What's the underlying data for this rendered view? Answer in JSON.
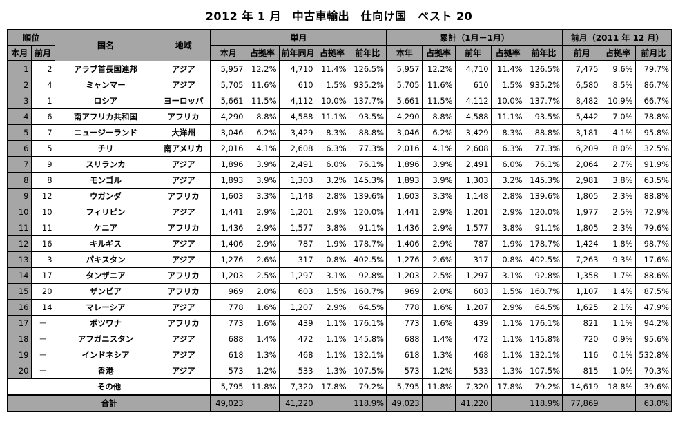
{
  "title": "2012 年 1 月　中古車輸出　仕向け国　ベスト 20",
  "headers": {
    "rank": "順位",
    "country": "国名",
    "region": "地域",
    "single_month": "単月",
    "cumulative": "累計（1月－1月）",
    "prev_month": "前月（2011 年 12 月）",
    "this_month": "本月",
    "last_month": "前月",
    "sub_single": [
      "本月",
      "占拠率",
      "前年同月",
      "占拠率",
      "前年比"
    ],
    "sub_cumulative": [
      "本年",
      "占拠率",
      "前年",
      "占拠率",
      "前年比"
    ],
    "sub_prev": [
      "前月",
      "占拠率",
      "前月比"
    ]
  },
  "rows": [
    {
      "rank": "1",
      "prev": "2",
      "country": "アラブ首長国連邦",
      "region": "アジア",
      "m": "5,957",
      "m_s": "12.2%",
      "py": "4,710",
      "py_s": "11.4%",
      "yoy": "126.5%",
      "c": "5,957",
      "c_s": "12.2%",
      "cp": "4,710",
      "cp_s": "11.4%",
      "c_yoy": "126.5%",
      "pm": "7,475",
      "pm_s": "9.6%",
      "mom": "79.7%"
    },
    {
      "rank": "2",
      "prev": "4",
      "country": "ミャンマー",
      "region": "アジア",
      "m": "5,705",
      "m_s": "11.6%",
      "py": "610",
      "py_s": "1.5%",
      "yoy": "935.2%",
      "c": "5,705",
      "c_s": "11.6%",
      "cp": "610",
      "cp_s": "1.5%",
      "c_yoy": "935.2%",
      "pm": "6,580",
      "pm_s": "8.5%",
      "mom": "86.7%"
    },
    {
      "rank": "3",
      "prev": "1",
      "country": "ロシア",
      "region": "ヨーロッパ",
      "m": "5,661",
      "m_s": "11.5%",
      "py": "4,112",
      "py_s": "10.0%",
      "yoy": "137.7%",
      "c": "5,661",
      "c_s": "11.5%",
      "cp": "4,112",
      "cp_s": "10.0%",
      "c_yoy": "137.7%",
      "pm": "8,482",
      "pm_s": "10.9%",
      "mom": "66.7%"
    },
    {
      "rank": "4",
      "prev": "6",
      "country": "南アフリカ共和国",
      "region": "アフリカ",
      "m": "4,290",
      "m_s": "8.8%",
      "py": "4,588",
      "py_s": "11.1%",
      "yoy": "93.5%",
      "c": "4,290",
      "c_s": "8.8%",
      "cp": "4,588",
      "cp_s": "11.1%",
      "c_yoy": "93.5%",
      "pm": "5,442",
      "pm_s": "7.0%",
      "mom": "78.8%"
    },
    {
      "rank": "5",
      "prev": "7",
      "country": "ニュージーランド",
      "region": "大洋州",
      "m": "3,046",
      "m_s": "6.2%",
      "py": "3,429",
      "py_s": "8.3%",
      "yoy": "88.8%",
      "c": "3,046",
      "c_s": "6.2%",
      "cp": "3,429",
      "cp_s": "8.3%",
      "c_yoy": "88.8%",
      "pm": "3,181",
      "pm_s": "4.1%",
      "mom": "95.8%"
    },
    {
      "rank": "6",
      "prev": "5",
      "country": "チリ",
      "region": "南アメリカ",
      "m": "2,016",
      "m_s": "4.1%",
      "py": "2,608",
      "py_s": "6.3%",
      "yoy": "77.3%",
      "c": "2,016",
      "c_s": "4.1%",
      "cp": "2,608",
      "cp_s": "6.3%",
      "c_yoy": "77.3%",
      "pm": "6,209",
      "pm_s": "8.0%",
      "mom": "32.5%"
    },
    {
      "rank": "7",
      "prev": "9",
      "country": "スリランカ",
      "region": "アジア",
      "m": "1,896",
      "m_s": "3.9%",
      "py": "2,491",
      "py_s": "6.0%",
      "yoy": "76.1%",
      "c": "1,896",
      "c_s": "3.9%",
      "cp": "2,491",
      "cp_s": "6.0%",
      "c_yoy": "76.1%",
      "pm": "2,064",
      "pm_s": "2.7%",
      "mom": "91.9%"
    },
    {
      "rank": "8",
      "prev": "8",
      "country": "モンゴル",
      "region": "アジア",
      "m": "1,893",
      "m_s": "3.9%",
      "py": "1,303",
      "py_s": "3.2%",
      "yoy": "145.3%",
      "c": "1,893",
      "c_s": "3.9%",
      "cp": "1,303",
      "cp_s": "3.2%",
      "c_yoy": "145.3%",
      "pm": "2,981",
      "pm_s": "3.8%",
      "mom": "63.5%"
    },
    {
      "rank": "9",
      "prev": "12",
      "country": "ウガンダ",
      "region": "アフリカ",
      "m": "1,603",
      "m_s": "3.3%",
      "py": "1,148",
      "py_s": "2.8%",
      "yoy": "139.6%",
      "c": "1,603",
      "c_s": "3.3%",
      "cp": "1,148",
      "cp_s": "2.8%",
      "c_yoy": "139.6%",
      "pm": "1,805",
      "pm_s": "2.3%",
      "mom": "88.8%"
    },
    {
      "rank": "10",
      "prev": "10",
      "country": "フィリピン",
      "region": "アジア",
      "m": "1,441",
      "m_s": "2.9%",
      "py": "1,201",
      "py_s": "2.9%",
      "yoy": "120.0%",
      "c": "1,441",
      "c_s": "2.9%",
      "cp": "1,201",
      "cp_s": "2.9%",
      "c_yoy": "120.0%",
      "pm": "1,977",
      "pm_s": "2.5%",
      "mom": "72.9%"
    },
    {
      "rank": "11",
      "prev": "11",
      "country": "ケニア",
      "region": "アフリカ",
      "m": "1,436",
      "m_s": "2.9%",
      "py": "1,577",
      "py_s": "3.8%",
      "yoy": "91.1%",
      "c": "1,436",
      "c_s": "2.9%",
      "cp": "1,577",
      "cp_s": "3.8%",
      "c_yoy": "91.1%",
      "pm": "1,805",
      "pm_s": "2.3%",
      "mom": "79.6%"
    },
    {
      "rank": "12",
      "prev": "16",
      "country": "キルギス",
      "region": "アジア",
      "m": "1,406",
      "m_s": "2.9%",
      "py": "787",
      "py_s": "1.9%",
      "yoy": "178.7%",
      "c": "1,406",
      "c_s": "2.9%",
      "cp": "787",
      "cp_s": "1.9%",
      "c_yoy": "178.7%",
      "pm": "1,424",
      "pm_s": "1.8%",
      "mom": "98.7%"
    },
    {
      "rank": "13",
      "prev": "3",
      "country": "パキスタン",
      "region": "アジア",
      "m": "1,276",
      "m_s": "2.6%",
      "py": "317",
      "py_s": "0.8%",
      "yoy": "402.5%",
      "c": "1,276",
      "c_s": "2.6%",
      "cp": "317",
      "cp_s": "0.8%",
      "c_yoy": "402.5%",
      "pm": "7,263",
      "pm_s": "9.3%",
      "mom": "17.6%"
    },
    {
      "rank": "14",
      "prev": "17",
      "country": "タンザニア",
      "region": "アフリカ",
      "m": "1,203",
      "m_s": "2.5%",
      "py": "1,297",
      "py_s": "3.1%",
      "yoy": "92.8%",
      "c": "1,203",
      "c_s": "2.5%",
      "cp": "1,297",
      "cp_s": "3.1%",
      "c_yoy": "92.8%",
      "pm": "1,358",
      "pm_s": "1.7%",
      "mom": "88.6%"
    },
    {
      "rank": "15",
      "prev": "20",
      "country": "ザンビア",
      "region": "アフリカ",
      "m": "969",
      "m_s": "2.0%",
      "py": "603",
      "py_s": "1.5%",
      "yoy": "160.7%",
      "c": "969",
      "c_s": "2.0%",
      "cp": "603",
      "cp_s": "1.5%",
      "c_yoy": "160.7%",
      "pm": "1,107",
      "pm_s": "1.4%",
      "mom": "87.5%"
    },
    {
      "rank": "16",
      "prev": "14",
      "country": "マレーシア",
      "region": "アジア",
      "m": "778",
      "m_s": "1.6%",
      "py": "1,207",
      "py_s": "2.9%",
      "yoy": "64.5%",
      "c": "778",
      "c_s": "1.6%",
      "cp": "1,207",
      "cp_s": "2.9%",
      "c_yoy": "64.5%",
      "pm": "1,625",
      "pm_s": "2.1%",
      "mom": "47.9%"
    },
    {
      "rank": "17",
      "prev": "－",
      "country": "ボツワナ",
      "region": "アフリカ",
      "m": "773",
      "m_s": "1.6%",
      "py": "439",
      "py_s": "1.1%",
      "yoy": "176.1%",
      "c": "773",
      "c_s": "1.6%",
      "cp": "439",
      "cp_s": "1.1%",
      "c_yoy": "176.1%",
      "pm": "821",
      "pm_s": "1.1%",
      "mom": "94.2%"
    },
    {
      "rank": "18",
      "prev": "－",
      "country": "アフガニスタン",
      "region": "アジア",
      "m": "688",
      "m_s": "1.4%",
      "py": "472",
      "py_s": "1.1%",
      "yoy": "145.8%",
      "c": "688",
      "c_s": "1.4%",
      "cp": "472",
      "cp_s": "1.1%",
      "c_yoy": "145.8%",
      "pm": "720",
      "pm_s": "0.9%",
      "mom": "95.6%"
    },
    {
      "rank": "19",
      "prev": "－",
      "country": "インドネシア",
      "region": "アジア",
      "m": "618",
      "m_s": "1.3%",
      "py": "468",
      "py_s": "1.1%",
      "yoy": "132.1%",
      "c": "618",
      "c_s": "1.3%",
      "cp": "468",
      "cp_s": "1.1%",
      "c_yoy": "132.1%",
      "pm": "116",
      "pm_s": "0.1%",
      "mom": "532.8%"
    },
    {
      "rank": "20",
      "prev": "－",
      "country": "香港",
      "region": "アジア",
      "m": "573",
      "m_s": "1.2%",
      "py": "533",
      "py_s": "1.3%",
      "yoy": "107.5%",
      "c": "573",
      "c_s": "1.2%",
      "cp": "533",
      "cp_s": "1.3%",
      "c_yoy": "107.5%",
      "pm": "815",
      "pm_s": "1.0%",
      "mom": "70.3%"
    }
  ],
  "other": {
    "label": "その他",
    "m": "5,795",
    "m_s": "11.8%",
    "py": "7,320",
    "py_s": "17.8%",
    "yoy": "79.2%",
    "c": "5,795",
    "c_s": "11.8%",
    "cp": "7,320",
    "cp_s": "17.8%",
    "c_yoy": "79.2%",
    "pm": "14,619",
    "pm_s": "18.8%",
    "mom": "39.6%"
  },
  "total": {
    "label": "合計",
    "m": "49,023",
    "py": "41,220",
    "yoy": "118.9%",
    "c": "49,023",
    "cp": "41,220",
    "c_yoy": "118.9%",
    "pm": "77,869",
    "mom": "63.0%"
  }
}
